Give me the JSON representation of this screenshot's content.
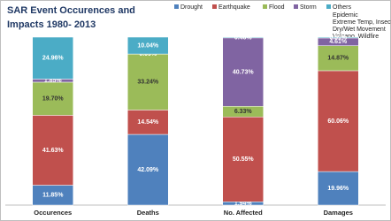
{
  "chart_data": {
    "type": "stacked_bar",
    "title": [
      "SAR Event Occurences and",
      "Impacts 1980- 2013"
    ],
    "categories": [
      "Occurences",
      "Deaths",
      "No. Affected",
      "Damages"
    ],
    "ylim": [
      0,
      100
    ],
    "series": [
      {
        "name": "Drought",
        "color": "#4f81bd",
        "values": [
          11.85,
          42.09,
          1.94,
          19.96
        ],
        "value_labels": [
          "11.85%",
          "42.09%",
          "1.94%",
          "19.96%"
        ]
      },
      {
        "name": "Earthquake",
        "color": "#c0504d",
        "values": [
          41.63,
          14.54,
          50.55,
          60.06
        ],
        "value_labels": [
          "41.63%",
          "14.54%",
          "50.55%",
          "60.06%"
        ]
      },
      {
        "name": "Flood",
        "color": "#9bbb59",
        "values": [
          19.7,
          33.24,
          6.33,
          14.87
        ],
        "value_labels": [
          "19.70%",
          "33.24%",
          "6.33%",
          "14.87%"
        ]
      },
      {
        "name": "Storm",
        "color": "#8064a2",
        "values": [
          1.85,
          0.09,
          40.73,
          4.61
        ],
        "value_labels": [
          "1.85%",
          "0.09%",
          "40.73%",
          "4.61%"
        ]
      },
      {
        "name": "Others",
        "color": "#4bacc6",
        "values": [
          24.96,
          10.04,
          0.46,
          0.51
        ],
        "value_labels": [
          "24.96%",
          "10.04%",
          "0.46%",
          "0.51%"
        ]
      }
    ],
    "legend_note": [
      "Epidemic",
      "Extreme Temp, Insects",
      "Dry/Wet Movement",
      "Volcano, Wildfire"
    ],
    "legend": "top-right"
  }
}
